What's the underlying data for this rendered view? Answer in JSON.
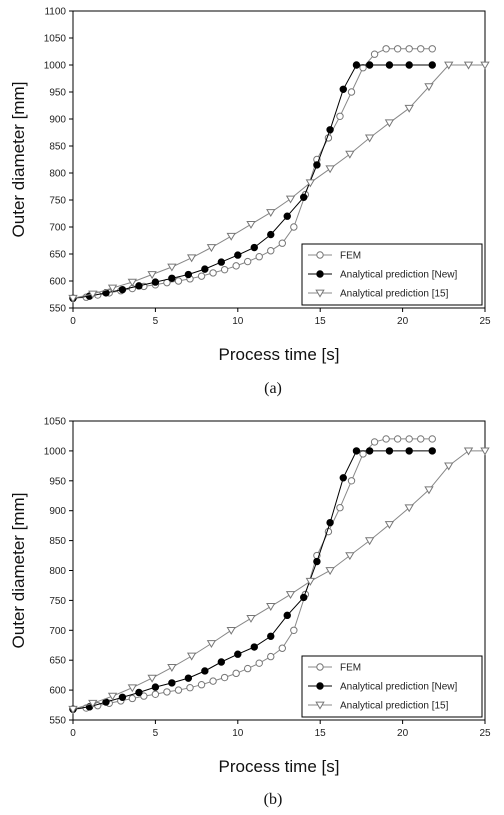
{
  "chart_data": [
    {
      "type": "line",
      "xlabel": "Process time [s]",
      "ylabel": "Outer diameter [mm]",
      "xlim": [
        0,
        25
      ],
      "ylim": [
        550,
        1100
      ],
      "xticks": [
        "0",
        "5",
        "10",
        "15",
        "20",
        "25"
      ],
      "yticks": [
        "550",
        "600",
        "650",
        "700",
        "750",
        "800",
        "850",
        "900",
        "950",
        "1000",
        "1050",
        "1100"
      ],
      "legend_position": "bottom-right",
      "caption": "(a)",
      "series": [
        {
          "name": "FEM",
          "marker": "open-circle",
          "x": [
            0,
            0.8,
            1.5,
            2.2,
            2.9,
            3.6,
            4.3,
            5.0,
            5.7,
            6.4,
            7.1,
            7.8,
            8.5,
            9.2,
            9.9,
            10.6,
            11.3,
            12.0,
            12.7,
            13.4,
            14.1,
            14.8,
            15.5,
            16.2,
            16.9,
            17.6,
            18.3,
            19.0,
            19.7,
            20.4,
            21.1,
            21.8
          ],
          "y": [
            568,
            570,
            574,
            578,
            582,
            586,
            590,
            593,
            597,
            600,
            604,
            609,
            615,
            621,
            628,
            636,
            645,
            656,
            670,
            700,
            760,
            825,
            865,
            905,
            950,
            995,
            1020,
            1030,
            1030,
            1030,
            1030,
            1030
          ]
        },
        {
          "name": "Analytical prediction [New]",
          "marker": "filled-circle",
          "x": [
            0,
            1.0,
            2.0,
            3.0,
            4.0,
            5.0,
            6.0,
            7.0,
            8.0,
            9.0,
            10.0,
            11.0,
            12.0,
            13.0,
            14.0,
            14.8,
            15.6,
            16.4,
            17.2,
            18.0,
            19.2,
            20.4,
            21.8
          ],
          "y": [
            568,
            572,
            578,
            584,
            591,
            598,
            605,
            612,
            622,
            635,
            648,
            662,
            686,
            720,
            755,
            815,
            880,
            955,
            1000,
            1000,
            1000,
            1000,
            1000
          ]
        },
        {
          "name": "Analytical prediction [15]",
          "marker": "open-triangle-down",
          "x": [
            0,
            1.2,
            2.4,
            3.6,
            4.8,
            6.0,
            7.2,
            8.4,
            9.6,
            10.8,
            12.0,
            13.2,
            14.4,
            15.6,
            16.8,
            18.0,
            19.2,
            20.4,
            21.6,
            22.8,
            24.0,
            25.0
          ],
          "y": [
            568,
            576,
            587,
            598,
            612,
            626,
            643,
            662,
            683,
            705,
            727,
            752,
            782,
            808,
            835,
            865,
            893,
            920,
            960,
            1000,
            1000,
            1000
          ]
        }
      ]
    },
    {
      "type": "line",
      "xlabel": "Process time [s]",
      "ylabel": "Outer diameter [mm]",
      "xlim": [
        0,
        25
      ],
      "ylim": [
        550,
        1050
      ],
      "xticks": [
        "0",
        "5",
        "10",
        "15",
        "20",
        "25"
      ],
      "yticks": [
        "550",
        "600",
        "650",
        "700",
        "750",
        "800",
        "850",
        "900",
        "950",
        "1000",
        "1050"
      ],
      "legend_position": "bottom-right",
      "caption": "(b)",
      "series": [
        {
          "name": "FEM",
          "marker": "open-circle",
          "x": [
            0,
            0.8,
            1.5,
            2.2,
            2.9,
            3.6,
            4.3,
            5.0,
            5.7,
            6.4,
            7.1,
            7.8,
            8.5,
            9.2,
            9.9,
            10.6,
            11.3,
            12.0,
            12.7,
            13.4,
            14.1,
            14.8,
            15.5,
            16.2,
            16.9,
            17.6,
            18.3,
            19.0,
            19.7,
            20.4,
            21.1,
            21.8
          ],
          "y": [
            568,
            570,
            574,
            578,
            582,
            586,
            590,
            593,
            597,
            600,
            604,
            609,
            615,
            621,
            628,
            636,
            645,
            656,
            670,
            700,
            760,
            825,
            865,
            905,
            950,
            995,
            1015,
            1020,
            1020,
            1020,
            1020,
            1020
          ]
        },
        {
          "name": "Analytical prediction [New]",
          "marker": "filled-circle",
          "x": [
            0,
            1.0,
            2.0,
            3.0,
            4.0,
            5.0,
            6.0,
            7.0,
            8.0,
            9.0,
            10.0,
            11.0,
            12.0,
            13.0,
            14.0,
            14.8,
            15.6,
            16.4,
            17.2,
            18.0,
            19.2,
            20.4,
            21.8
          ],
          "y": [
            568,
            572,
            580,
            588,
            596,
            605,
            612,
            620,
            632,
            647,
            660,
            672,
            690,
            725,
            755,
            815,
            880,
            955,
            1000,
            1000,
            1000,
            1000,
            1000
          ]
        },
        {
          "name": "Analytical prediction [15]",
          "marker": "open-triangle-down",
          "x": [
            0,
            1.2,
            2.4,
            3.6,
            4.8,
            6.0,
            7.2,
            8.4,
            9.6,
            10.8,
            12.0,
            13.2,
            14.4,
            15.6,
            16.8,
            18.0,
            19.2,
            20.4,
            21.6,
            22.8,
            24.0,
            25.0
          ],
          "y": [
            568,
            578,
            590,
            604,
            620,
            638,
            657,
            678,
            700,
            720,
            740,
            760,
            782,
            800,
            825,
            850,
            877,
            905,
            935,
            975,
            1000,
            1000
          ]
        }
      ]
    }
  ]
}
